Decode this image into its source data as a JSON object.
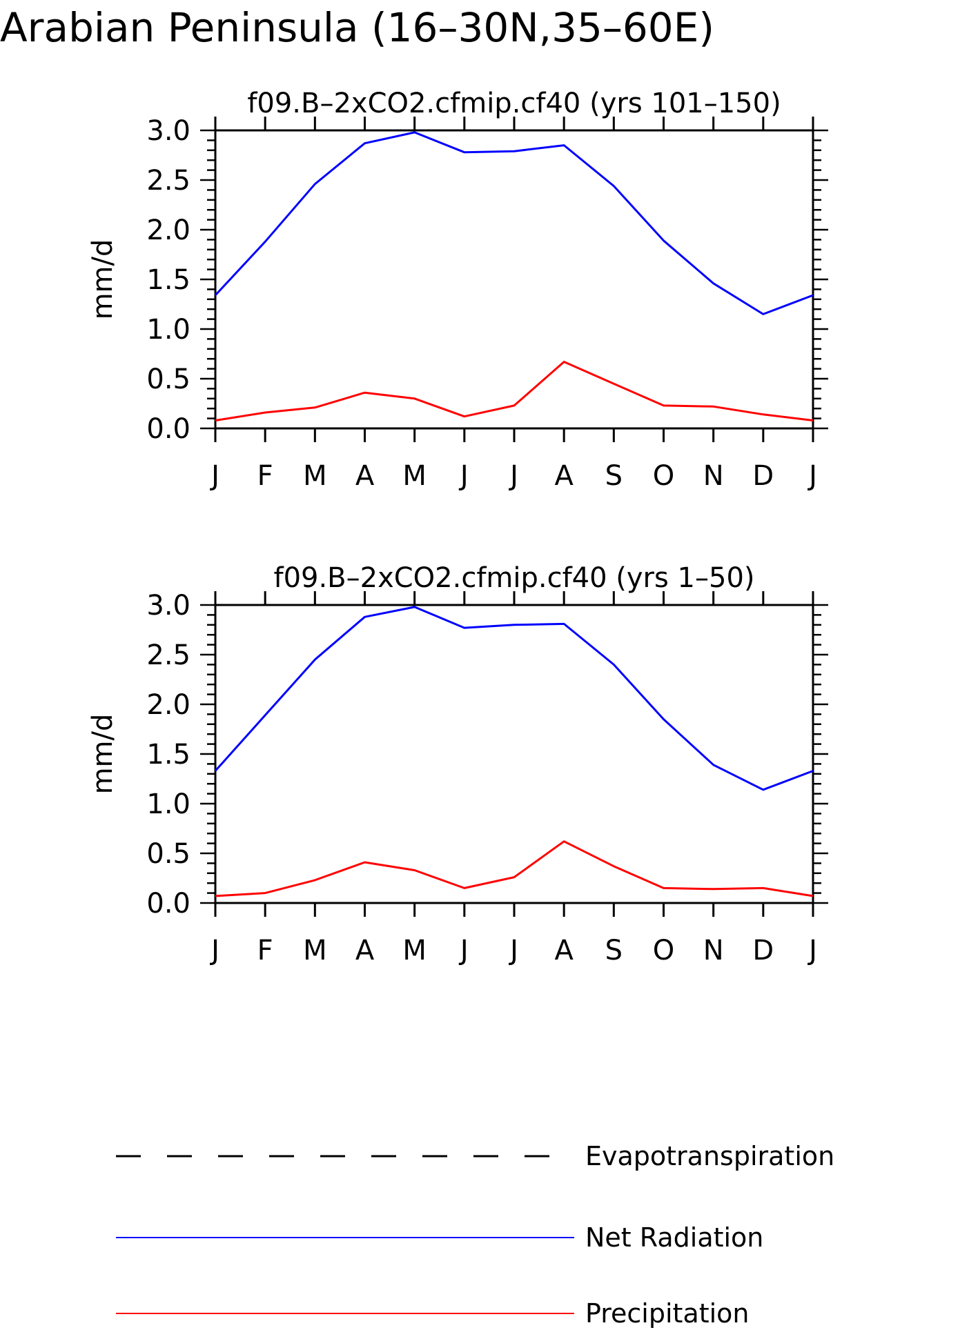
{
  "figure": {
    "title": "Arabian Peninsula (16–30N,35–60E)"
  },
  "legend": {
    "placement": "bottom",
    "items": [
      {
        "label": "Evapotranspiration",
        "color": "#000000",
        "style": "dashed"
      },
      {
        "label": "Net Radiation",
        "color": "#0000ff",
        "style": "solid"
      },
      {
        "label": "Precipitation",
        "color": "#ff0000",
        "style": "solid"
      }
    ]
  },
  "chart_data": [
    {
      "type": "line",
      "title": "f09.B–2xCO2.cfmip.cf40 (yrs 101–150)",
      "xlabel": "",
      "ylabel": "mm/d",
      "categories": [
        "J",
        "F",
        "M",
        "A",
        "M",
        "J",
        "J",
        "A",
        "S",
        "O",
        "N",
        "D",
        "J"
      ],
      "ylim": [
        0,
        3.0
      ],
      "yticks": [
        "0.0",
        "0.5",
        "1.0",
        "1.5",
        "2.0",
        "2.5",
        "3.0"
      ],
      "grid": false,
      "series": [
        {
          "name": "Net Radiation",
          "color": "#0000ff",
          "values": [
            1.34,
            1.88,
            2.46,
            2.87,
            2.98,
            2.78,
            2.79,
            2.85,
            2.44,
            1.89,
            1.46,
            1.15,
            1.34
          ]
        },
        {
          "name": "Precipitation",
          "color": "#ff0000",
          "values": [
            0.08,
            0.16,
            0.21,
            0.36,
            0.3,
            0.12,
            0.23,
            0.67,
            0.45,
            0.23,
            0.22,
            0.14,
            0.08
          ]
        }
      ]
    },
    {
      "type": "line",
      "title": "f09.B–2xCO2.cfmip.cf40 (yrs 1–50)",
      "xlabel": "",
      "ylabel": "mm/d",
      "categories": [
        "J",
        "F",
        "M",
        "A",
        "M",
        "J",
        "J",
        "A",
        "S",
        "O",
        "N",
        "D",
        "J"
      ],
      "ylim": [
        0,
        3.0
      ],
      "yticks": [
        "0.0",
        "0.5",
        "1.0",
        "1.5",
        "2.0",
        "2.5",
        "3.0"
      ],
      "grid": false,
      "series": [
        {
          "name": "Net Radiation",
          "color": "#0000ff",
          "values": [
            1.33,
            1.89,
            2.45,
            2.88,
            2.98,
            2.77,
            2.8,
            2.81,
            2.4,
            1.85,
            1.39,
            1.14,
            1.33
          ]
        },
        {
          "name": "Precipitation",
          "color": "#ff0000",
          "values": [
            0.07,
            0.1,
            0.23,
            0.41,
            0.33,
            0.15,
            0.26,
            0.62,
            0.37,
            0.15,
            0.14,
            0.15,
            0.07
          ]
        }
      ]
    }
  ]
}
